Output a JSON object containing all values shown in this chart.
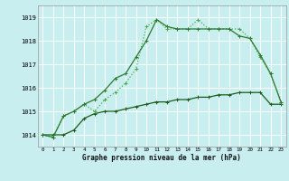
{
  "title": "Graphe pression niveau de la mer (hPa)",
  "bg_color": "#c8eef0",
  "grid_color": "#ffffff",
  "line_color_dark": "#1a5c1a",
  "line_color_mid": "#2d7a2d",
  "line_color_light": "#4aaa4a",
  "x_labels": [
    "0",
    "1",
    "2",
    "3",
    "4",
    "5",
    "6",
    "7",
    "8",
    "9",
    "10",
    "11",
    "12",
    "13",
    "14",
    "15",
    "16",
    "17",
    "18",
    "19",
    "20",
    "21",
    "22",
    "23"
  ],
  "ylim": [
    1013.5,
    1019.5
  ],
  "yticks": [
    1014,
    1015,
    1016,
    1017,
    1018,
    1019
  ],
  "series_flat": [
    1014.0,
    1014.0,
    1014.0,
    1014.2,
    1014.7,
    1014.9,
    1015.0,
    1015.0,
    1015.1,
    1015.2,
    1015.3,
    1015.4,
    1015.4,
    1015.5,
    1015.5,
    1015.6,
    1015.6,
    1015.7,
    1015.7,
    1015.8,
    1015.8,
    1015.8,
    1015.3,
    1015.3
  ],
  "series_mid": [
    1014.0,
    1013.9,
    1014.8,
    1015.0,
    1015.3,
    1015.0,
    1015.5,
    1015.8,
    1016.2,
    1016.8,
    1018.6,
    1018.9,
    1018.5,
    1018.5,
    1018.5,
    1018.9,
    1018.5,
    1018.5,
    1018.5,
    1018.5,
    1018.1,
    1017.3,
    1016.6,
    1015.4
  ],
  "series_peak": [
    1014.0,
    1013.9,
    1014.8,
    1015.0,
    1015.3,
    1015.5,
    1015.9,
    1016.4,
    1016.6,
    1017.3,
    1018.0,
    1018.9,
    1018.6,
    1018.5,
    1018.5,
    1018.5,
    1018.5,
    1018.5,
    1018.5,
    1018.2,
    1018.1,
    1017.4,
    1016.6,
    1015.4
  ]
}
